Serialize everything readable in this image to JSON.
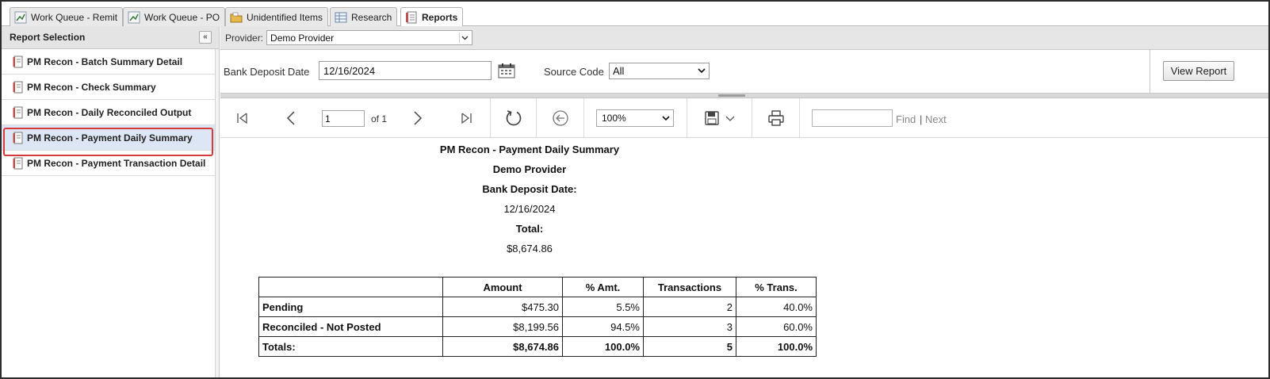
{
  "tabs": [
    {
      "label": "Work Queue - Remit",
      "icon": "chart-icon"
    },
    {
      "label": "Work Queue - PO",
      "icon": "chart-icon"
    },
    {
      "label": "Unidentified Items",
      "icon": "folder-icon"
    },
    {
      "label": "Research",
      "icon": "grid-icon"
    },
    {
      "label": "Reports",
      "icon": "report-icon",
      "active": true
    }
  ],
  "left_panel": {
    "title": "Report Selection",
    "collapse_glyph": "«",
    "reports": [
      {
        "label": "PM Recon - Batch Summary Detail"
      },
      {
        "label": "PM Recon - Check Summary"
      },
      {
        "label": "PM Recon - Daily Reconciled Output"
      },
      {
        "label": "PM Recon - Payment Daily Summary",
        "selected": true
      },
      {
        "label": "PM Recon - Payment Transaction Detail"
      }
    ]
  },
  "provider": {
    "label": "Provider:",
    "value": "Demo Provider"
  },
  "params": {
    "bank_deposit_label": "Bank Deposit Date",
    "bank_deposit_value": "12/16/2024",
    "source_code_label": "Source Code",
    "source_code_value": "All",
    "view_report_label": "View Report"
  },
  "viewer": {
    "page_value": "1",
    "page_of": "of 1",
    "zoom_value": "100%",
    "find_label": "Find",
    "find_sep": "|",
    "next_label": "Next"
  },
  "report": {
    "title": "PM Recon - Payment Daily Summary",
    "provider": "Demo Provider",
    "date_label": "Bank Deposit Date:",
    "date_value": "12/16/2024",
    "total_label": "Total:",
    "total_value": "$8,674.86",
    "table": {
      "headers": [
        "",
        "Amount",
        "% Amt.",
        "Transactions",
        "% Trans."
      ],
      "rows": [
        [
          "Pending",
          "$475.30",
          "5.5%",
          "2",
          "40.0%"
        ],
        [
          "Reconciled - Not Posted",
          "$8,199.56",
          "94.5%",
          "3",
          "60.0%"
        ]
      ],
      "totals": [
        "Totals:",
        "$8,674.86",
        "100.0%",
        "5",
        "100.0%"
      ]
    }
  },
  "colors": {
    "selection_highlight": "#d43c3c",
    "selected_row_bg": "#dde6f5",
    "panel_header_bg": "#e4e4e4"
  }
}
